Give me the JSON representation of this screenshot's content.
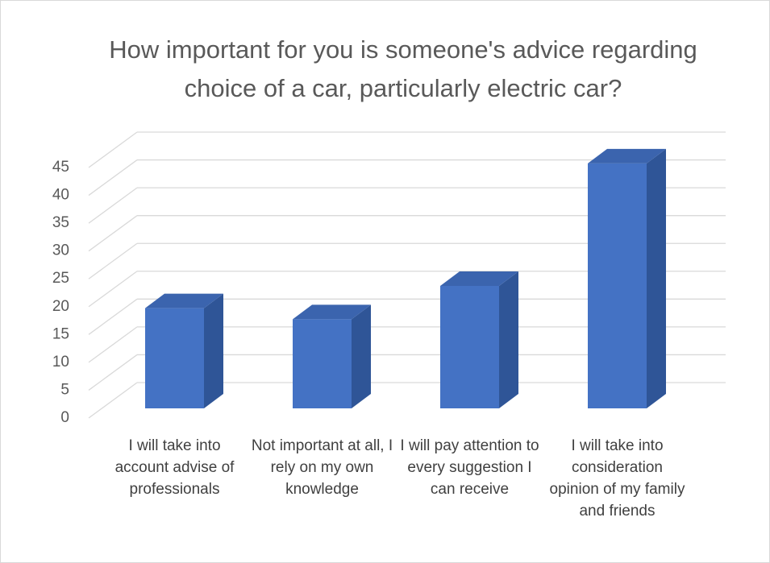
{
  "chart_data": {
    "type": "bar3d",
    "title": "How important for you is someone's advice regarding choice of a car, particularly electric car?",
    "categories": [
      "I will take into account advise of professionals",
      "Not important at all, I rely on my own knowledge",
      "I will pay attention to every suggestion I can receive",
      "I will take into consideration opinion of my family and friends"
    ],
    "values": [
      18,
      16,
      22,
      44
    ],
    "color": "#4472c4",
    "ylim": [
      0,
      45
    ],
    "yticks": [
      0,
      5,
      10,
      15,
      20,
      25,
      30,
      35,
      40,
      45
    ],
    "grid": true
  }
}
